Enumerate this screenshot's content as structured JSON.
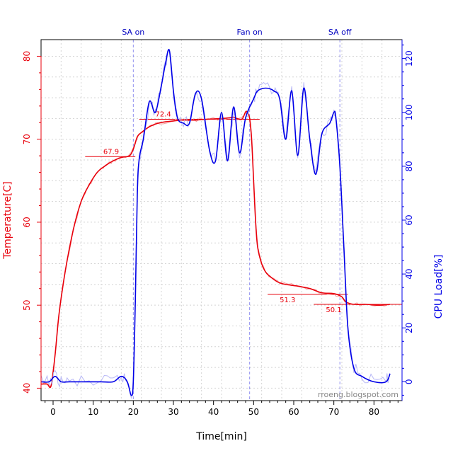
{
  "chart_data": {
    "type": "line",
    "xlabel": "Time[min]",
    "ylabel_left": "Temperature[C]",
    "ylabel_right": "CPU Load[%]",
    "xlim": [
      -3,
      87
    ],
    "ylim_left": [
      38.5,
      82
    ],
    "ylim_right": [
      -7,
      127
    ],
    "x_ticks": [
      0,
      10,
      20,
      30,
      40,
      50,
      60,
      70,
      80
    ],
    "y_ticks_left": [
      40,
      50,
      60,
      70,
      80
    ],
    "y_ticks_right": [
      0,
      20,
      40,
      60,
      80,
      100,
      120
    ],
    "grid": true,
    "events": [
      {
        "label": "SA on",
        "x": 20
      },
      {
        "label": "Fan on",
        "x": 49
      },
      {
        "label": "SA off",
        "x": 71.5
      }
    ],
    "watermark": "rroeng.blogspot.com",
    "series": [
      {
        "name": "Temperature",
        "axis": "left",
        "color": "#e8000b",
        "x": [
          -3,
          -1.5,
          -0.5,
          0.5,
          1.5,
          3,
          5,
          7,
          9,
          11,
          13,
          15,
          17,
          19,
          20,
          21,
          22,
          24,
          26,
          28,
          30,
          32,
          35,
          38,
          42,
          45,
          47,
          48,
          48.5,
          49,
          49.5,
          50,
          50.5,
          51,
          52,
          53,
          54,
          56,
          58,
          61,
          64,
          67,
          70,
          72,
          73,
          75,
          78,
          81,
          84
        ],
        "y": [
          40.5,
          40.5,
          40.3,
          44,
          49,
          54,
          59,
          62.5,
          64.5,
          66,
          66.8,
          67.4,
          67.8,
          68,
          68.8,
          70.3,
          70.8,
          71.5,
          71.9,
          72.1,
          72.2,
          72.3,
          72.3,
          72.4,
          72.5,
          72.6,
          72.4,
          73.3,
          73.2,
          72.5,
          70,
          65,
          60,
          57,
          55,
          54,
          53.5,
          52.8,
          52.5,
          52.3,
          52,
          51.5,
          51.4,
          51,
          50.4,
          50.1,
          50.1,
          50,
          50.1
        ]
      },
      {
        "name": "CPU Load",
        "axis": "right",
        "color": "#0000e8",
        "x": [
          -3,
          -1,
          0.5,
          2,
          4,
          8,
          12,
          15,
          17,
          18.5,
          19.5,
          20,
          20.5,
          21,
          21.5,
          22.5,
          24,
          25.5,
          27,
          28,
          29,
          30,
          31,
          32.5,
          34,
          35.5,
          37,
          39,
          40.5,
          42,
          43.5,
          45,
          46.5,
          48,
          50,
          51,
          53,
          55,
          56.5,
          58,
          59.5,
          61,
          62.5,
          64,
          65.5,
          67,
          69,
          70,
          70.5,
          71.5,
          72.5,
          73.5,
          75,
          77,
          80,
          83,
          84
        ],
        "y": [
          0,
          0,
          2,
          0,
          0,
          0,
          0,
          0,
          2,
          0,
          -5,
          0,
          30,
          70,
          83,
          90,
          104,
          100,
          110,
          118,
          123,
          108,
          98,
          96,
          96,
          107,
          105,
          86,
          82,
          100,
          82,
          102,
          85,
          98,
          105,
          108,
          109,
          108,
          105,
          90,
          108,
          84,
          109,
          90,
          77,
          92,
          96,
          100,
          98,
          80,
          50,
          20,
          5,
          2,
          0,
          0,
          3
        ]
      }
    ],
    "annotations": [
      {
        "label": "67.9",
        "value": 67.9,
        "x_range": [
          8,
          20.5
        ],
        "label_x": 12.5
      },
      {
        "label": "72.4",
        "value": 72.4,
        "x_range": [
          21.5,
          51.5
        ],
        "label_x": 25.5
      },
      {
        "label": "51.3",
        "value": 51.3,
        "x_range": [
          53.5,
          73.5
        ],
        "label_x": 56.5
      },
      {
        "label": "50.1",
        "value": 50.1,
        "x_range": [
          65,
          87
        ],
        "label_x": 68
      }
    ]
  }
}
